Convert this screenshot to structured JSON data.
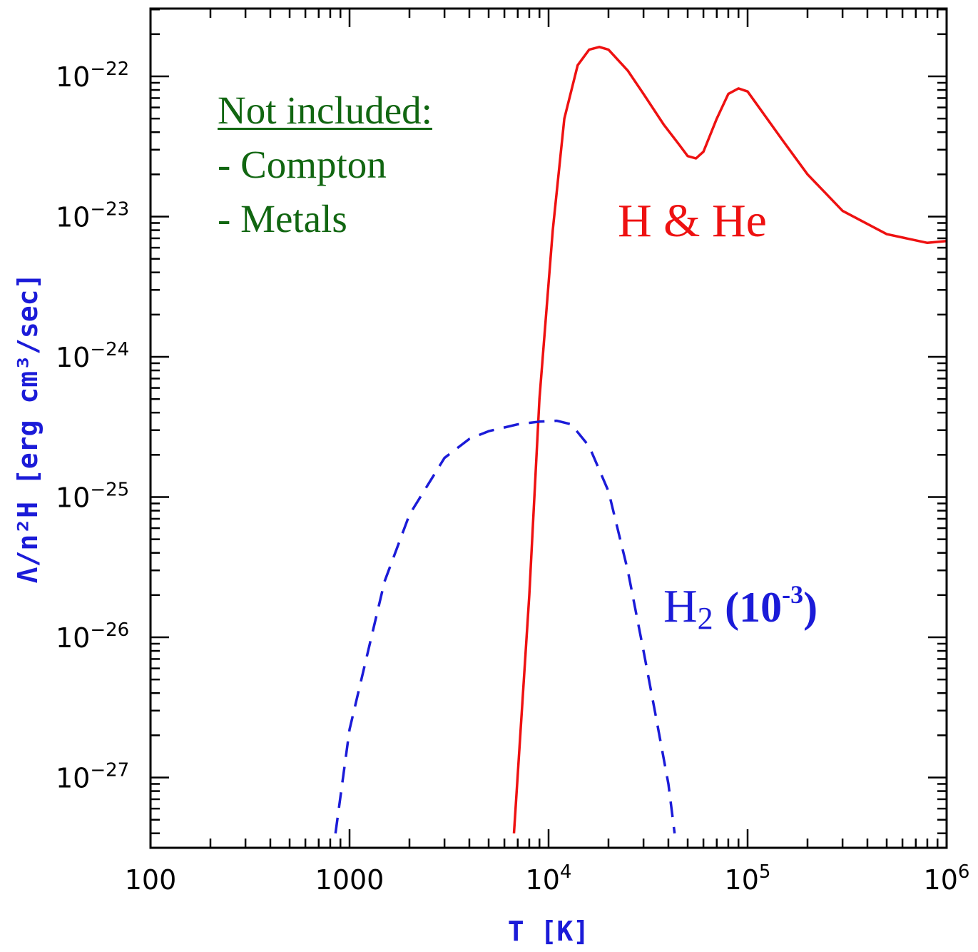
{
  "chart_data": {
    "type": "line",
    "xscale": "log",
    "yscale": "log",
    "xlim": [
      100,
      1000000
    ],
    "ylim": [
      4e-28,
      2.6e-22
    ],
    "xlabel": "T [K]",
    "ylabel": "Λ/n²H [erg cm³/sec]",
    "x_ticks": [
      {
        "value": 100,
        "label": "100"
      },
      {
        "value": 1000,
        "label": "1000"
      },
      {
        "value": 10000,
        "base": "10",
        "exp": "4"
      },
      {
        "value": 100000,
        "base": "10",
        "exp": "5"
      },
      {
        "value": 1000000,
        "base": "10",
        "exp": "6"
      }
    ],
    "y_ticks": [
      {
        "value": 1e-22,
        "base": "10",
        "exp": "−22"
      },
      {
        "value": 1e-23,
        "base": "10",
        "exp": "−23"
      },
      {
        "value": 1e-24,
        "base": "10",
        "exp": "−24"
      },
      {
        "value": 1e-25,
        "base": "10",
        "exp": "−25"
      },
      {
        "value": 1e-26,
        "base": "10",
        "exp": "−26"
      },
      {
        "value": 1e-27,
        "base": "10",
        "exp": "−27"
      }
    ],
    "series": [
      {
        "name": "H & He",
        "color": "#ee1111",
        "style": "solid",
        "points": [
          [
            6700,
            4e-28
          ],
          [
            8000,
            2e-26
          ],
          [
            9000,
            5e-25
          ],
          [
            10500,
            8e-24
          ],
          [
            12000,
            5e-23
          ],
          [
            14000,
            1.2e-22
          ],
          [
            16000,
            1.55e-22
          ],
          [
            18000,
            1.62e-22
          ],
          [
            20000,
            1.55e-22
          ],
          [
            25000,
            1.1e-22
          ],
          [
            30000,
            7.5e-23
          ],
          [
            38000,
            4.5e-23
          ],
          [
            45000,
            3.3e-23
          ],
          [
            50000,
            2.7e-23
          ],
          [
            55000,
            2.6e-23
          ],
          [
            60000,
            2.9e-23
          ],
          [
            70000,
            5e-23
          ],
          [
            80000,
            7.5e-23
          ],
          [
            90000,
            8.2e-23
          ],
          [
            100000,
            7.8e-23
          ],
          [
            150000,
            3.5e-23
          ],
          [
            200000,
            2e-23
          ],
          [
            300000,
            1.1e-23
          ],
          [
            500000,
            7.5e-24
          ],
          [
            800000,
            6.5e-24
          ],
          [
            1000000,
            6.7e-24
          ]
        ]
      },
      {
        "name": "H2 (10-3)",
        "color": "#1b1bd8",
        "style": "dashed",
        "points": [
          [
            850,
            4e-28
          ],
          [
            1000,
            2.2e-27
          ],
          [
            1500,
            2.5e-26
          ],
          [
            2000,
            7.5e-26
          ],
          [
            3000,
            1.9e-25
          ],
          [
            4000,
            2.6e-25
          ],
          [
            5000,
            2.95e-25
          ],
          [
            7000,
            3.3e-25
          ],
          [
            9000,
            3.45e-25
          ],
          [
            11000,
            3.5e-25
          ],
          [
            13000,
            3.3e-25
          ],
          [
            16000,
            2.3e-25
          ],
          [
            20000,
            1.1e-25
          ],
          [
            25000,
            3e-26
          ],
          [
            30000,
            8e-27
          ],
          [
            35000,
            2.5e-27
          ],
          [
            40000,
            9e-28
          ],
          [
            43000,
            4e-28
          ]
        ]
      }
    ]
  },
  "annotations": {
    "note_heading": "Not included:",
    "note_item_1": "- Compton",
    "note_item_2": "- Metals",
    "label_hhe": "H & He",
    "label_h2_base": "H",
    "label_h2_sub": "2",
    "label_h2_factor_base": "(10",
    "label_h2_factor_exp": "-3",
    "label_h2_factor_close": ")"
  }
}
